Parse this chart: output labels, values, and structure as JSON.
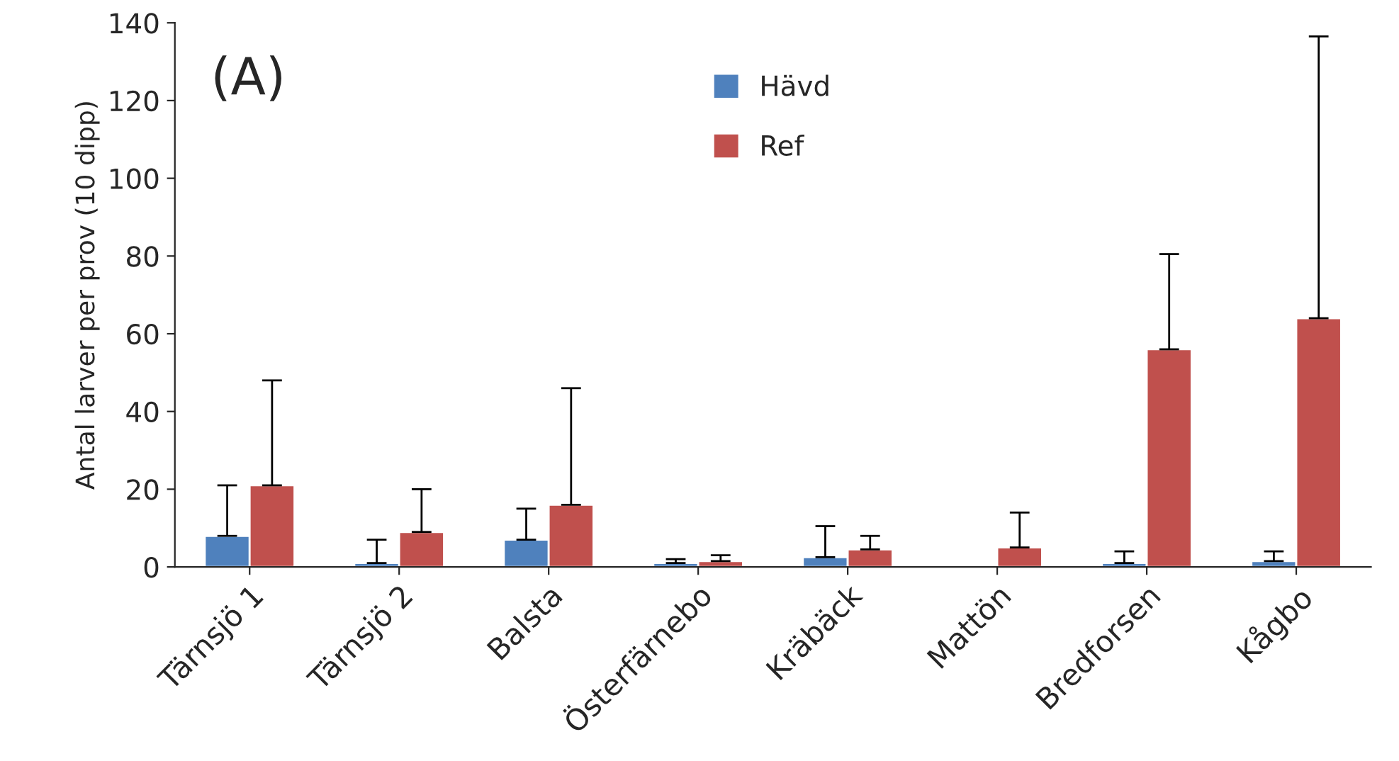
{
  "chart_data": {
    "type": "bar",
    "ylabel": "Antal larver per prov (10 dipp)",
    "categories": [
      "Tärnsjö 1",
      "Tärnsjö 2",
      "Balsta",
      "Österfärnebo",
      "Kräbäck",
      "Mattön",
      "Bredforsen",
      "Kågbo"
    ],
    "series": [
      {
        "name": "Hävd",
        "color": "#4f81bd",
        "values": [
          8,
          1,
          7,
          1,
          2.5,
          null,
          1,
          1.5
        ],
        "errors": [
          [
            8,
            21
          ],
          [
            1,
            7
          ],
          [
            7,
            15
          ],
          [
            1,
            2
          ],
          [
            2.5,
            10.5
          ],
          null,
          [
            1,
            4
          ],
          [
            1.5,
            4
          ]
        ]
      },
      {
        "name": "Ref",
        "color": "#c0504d",
        "values": [
          21,
          9,
          16,
          1.5,
          4.5,
          5,
          56,
          64
        ],
        "errors": [
          [
            21,
            48
          ],
          [
            9,
            20
          ],
          [
            16,
            46
          ],
          [
            1.5,
            3
          ],
          [
            4.5,
            8
          ],
          [
            5,
            14
          ],
          [
            56,
            80.5
          ],
          [
            64,
            136.5
          ]
        ]
      }
    ],
    "ylim": [
      0,
      140
    ],
    "yticks": [
      0,
      20,
      40,
      60,
      80,
      100,
      120,
      140
    ],
    "annotations": [
      "(A)"
    ],
    "legend": "top",
    "grid": false
  }
}
